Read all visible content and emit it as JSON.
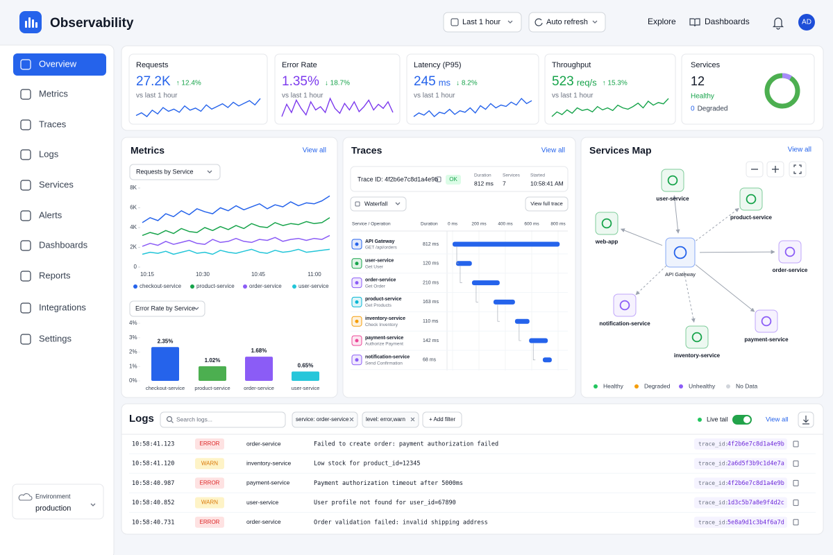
{
  "header": {
    "brand": "Observability",
    "time_range": "Last 1 hour",
    "refresh": "Auto refresh",
    "nav": [
      "Explore",
      "Dashboards"
    ],
    "avatar": "AD"
  },
  "sidebar": {
    "items": [
      "Overview",
      "Metrics",
      "Traces",
      "Logs",
      "Services",
      "Alerts",
      "Dashboards",
      "Reports",
      "Integrations",
      "Settings"
    ],
    "active": 0,
    "environment": {
      "label": "Environment",
      "value": "production"
    }
  },
  "kpis": [
    {
      "label": "Requests",
      "value": "27.2K",
      "change": "↑ 12.4%",
      "compare": "vs last 1 hour",
      "color": "#2563eb",
      "sparkline": [
        30,
        35,
        28,
        40,
        33,
        45,
        38,
        42,
        36,
        48,
        40,
        44,
        38,
        50,
        42,
        47,
        52,
        45,
        55,
        48,
        53,
        58,
        50,
        62
      ]
    },
    {
      "label": "Error Rate",
      "value": "1.35%",
      "change": "↓ 18.7%",
      "compare": "vs last 1 hour",
      "color": "#7c3aed",
      "sparkline": [
        40,
        55,
        45,
        60,
        50,
        42,
        58,
        48,
        52,
        45,
        62,
        50,
        44,
        56,
        48,
        58,
        46,
        52,
        60,
        48,
        55,
        50,
        58,
        45
      ]
    },
    {
      "label": "Latency (P95)",
      "value": "245",
      "unit": "ms",
      "change": "↓ 8.2%",
      "compare": "vs last 1 hour",
      "color": "#2563eb",
      "sparkline": [
        30,
        35,
        32,
        38,
        30,
        36,
        34,
        40,
        33,
        38,
        36,
        42,
        35,
        45,
        40,
        48,
        42,
        46,
        44,
        50,
        46,
        55,
        48,
        52
      ]
    },
    {
      "label": "Throughput",
      "value": "523",
      "unit": "req/s",
      "change": "↑ 15.3%",
      "compare": "vs last 1 hour",
      "color": "#16a34a",
      "sparkline": [
        35,
        42,
        38,
        45,
        40,
        48,
        44,
        46,
        42,
        50,
        45,
        48,
        44,
        52,
        48,
        46,
        50,
        55,
        48,
        58,
        52,
        56,
        54,
        62
      ]
    }
  ],
  "services_summary": {
    "label": "Services",
    "value": "12",
    "status": "Healthy",
    "degraded_count": "0",
    "degraded_label": "Degraded"
  },
  "metrics": {
    "title": "Metrics",
    "view_all": "View all",
    "requests_chart": {
      "type": "line",
      "selector": "Requests by Service",
      "x_labels": [
        "10:15",
        "10:30",
        "10:45",
        "11:00"
      ],
      "ylim": [
        0,
        8000
      ],
      "yticks": [
        0,
        {
          "value": 2000,
          "label": "2K"
        },
        {
          "value": 4000,
          "label": "4K"
        },
        {
          "value": 6000,
          "label": "6K"
        },
        {
          "value": 8000,
          "label": "8K"
        }
      ],
      "series": [
        {
          "name": "checkout-service",
          "color": "#2563eb",
          "values": [
            4500,
            5000,
            4700,
            5400,
            5100,
            5700,
            5300,
            5900,
            5600,
            5400,
            6000,
            5700,
            6200,
            5800,
            6100,
            6400,
            5900,
            6300,
            6100,
            6600,
            6200,
            6500,
            6400,
            6700,
            7200
          ]
        },
        {
          "name": "product-service",
          "color": "#16a34a",
          "values": [
            3200,
            3500,
            3300,
            3700,
            3400,
            3900,
            3600,
            3500,
            4000,
            3700,
            4100,
            3800,
            4200,
            3900,
            4400,
            4100,
            4000,
            4500,
            4200,
            4400,
            4300,
            4600,
            4400,
            4500,
            5000
          ]
        },
        {
          "name": "order-service",
          "color": "#8b5cf6",
          "values": [
            2100,
            2400,
            2200,
            2600,
            2300,
            2500,
            2700,
            2400,
            2300,
            2800,
            2500,
            2600,
            2900,
            2600,
            2500,
            2800,
            2700,
            3000,
            2600,
            2800,
            2900,
            2700,
            2900,
            2800,
            3200
          ]
        },
        {
          "name": "user-service",
          "color": "#22c5d8",
          "values": [
            1300,
            1500,
            1400,
            1600,
            1300,
            1500,
            1700,
            1400,
            1500,
            1300,
            1700,
            1500,
            1400,
            1600,
            1800,
            1500,
            1400,
            1700,
            1500,
            1600,
            1800,
            1500,
            1600,
            1700,
            1800
          ]
        }
      ]
    },
    "error_chart": {
      "type": "bar",
      "selector": "Error Rate by Service",
      "categories": [
        "checkout-service",
        "product-service",
        "order-service",
        "user-service"
      ],
      "values": [
        2.35,
        1.02,
        1.68,
        0.65
      ],
      "value_labels": [
        "2.35%",
        "1.02%",
        "1.68%",
        "0.65%"
      ],
      "colors": [
        "#2563eb",
        "#4caf50",
        "#8b5cf6",
        "#26c6da"
      ],
      "ylim": [
        0,
        4
      ],
      "yticks": [
        {
          "value": 0,
          "label": "0%"
        },
        {
          "value": 1,
          "label": "1%"
        },
        {
          "value": 2,
          "label": "2%"
        },
        {
          "value": 3,
          "label": "3%"
        },
        {
          "value": 4,
          "label": "4%"
        }
      ]
    }
  },
  "traces": {
    "title": "Traces",
    "view_all": "View all",
    "trace_id": "Trace ID: 4f2b6e7c8d1a4e9b",
    "status": "OK",
    "stats": [
      {
        "label": "Duration",
        "value": "812 ms"
      },
      {
        "label": "Services",
        "value": "7"
      },
      {
        "label": "Started",
        "value": "10:58:41 AM"
      }
    ],
    "view_mode": "Waterfall",
    "view_full": "View full trace",
    "columns": [
      "Service / Operation",
      "Duration"
    ],
    "xlim": [
      0,
      800
    ],
    "xticks": [
      {
        "value": 0,
        "label": "0 ms"
      },
      {
        "value": 200,
        "label": "200 ms"
      },
      {
        "value": 400,
        "label": "400 ms"
      },
      {
        "value": 600,
        "label": "600 ms"
      },
      {
        "value": 800,
        "label": "800 ms"
      }
    ],
    "spans": [
      {
        "service": "API Gateway",
        "operation": "GET /api/orders",
        "start": 0,
        "duration": 812,
        "duration_label": "812 ms",
        "color": "#2563eb"
      },
      {
        "service": "user-service",
        "operation": "Get User",
        "start": 26,
        "duration": 120,
        "duration_label": "120 ms",
        "color": "#16a34a"
      },
      {
        "service": "order-service",
        "operation": "Get Order",
        "start": 147,
        "duration": 210,
        "duration_label": "210 ms",
        "color": "#8b5cf6"
      },
      {
        "service": "product-service",
        "operation": "Get Products",
        "start": 310,
        "duration": 163,
        "duration_label": "163 ms",
        "color": "#06b6d4"
      },
      {
        "service": "inventory-service",
        "operation": "Check Inventory",
        "start": 473,
        "duration": 110,
        "duration_label": "110 ms",
        "color": "#f59e0b"
      },
      {
        "service": "payment-service",
        "operation": "Authorize Payment",
        "start": 580,
        "duration": 142,
        "duration_label": "142 ms",
        "color": "#ec4899"
      },
      {
        "service": "notification-service",
        "operation": "Send Confirmation",
        "start": 684,
        "duration": 68,
        "duration_label": "68 ms",
        "color": "#8b5cf6"
      }
    ]
  },
  "services_map": {
    "title": "Services Map",
    "view_all": "View all",
    "nodes": [
      {
        "label": "user-service",
        "color": "#16a34a"
      },
      {
        "label": "product-service",
        "color": "#16a34a"
      },
      {
        "label": "web-app",
        "color": "#16a34a"
      },
      {
        "label": "API Gateway",
        "color": "#2563eb"
      },
      {
        "label": "order-service",
        "color": "#8b5cf6"
      },
      {
        "label": "notification-service",
        "color": "#8b5cf6"
      },
      {
        "label": "inventory-service",
        "color": "#16a34a"
      },
      {
        "label": "payment-service",
        "color": "#8b5cf6"
      }
    ],
    "legend": [
      {
        "label": "Healthy",
        "color": "#22c55e"
      },
      {
        "label": "Degraded",
        "color": "#f59e0b"
      },
      {
        "label": "Unhealthy",
        "color": "#8b5cf6"
      },
      {
        "label": "No Data",
        "color": "#d1d5db"
      }
    ]
  },
  "logs": {
    "title": "Logs",
    "search": "Search logs...",
    "filters": [
      "service: order-service",
      "level: error,warn"
    ],
    "add_filter": "+ Add filter",
    "live_tail": "Live tail",
    "view_all": "View all",
    "rows": [
      {
        "time": "10:58:41.123",
        "level": "ERROR",
        "service": "order-service",
        "message": "Failed to create order: payment authorization failed",
        "trace_label": "trace_id:",
        "trace_id": "4f2b6e7c8d1a4e9b"
      },
      {
        "time": "10:58:41.120",
        "level": "WARN",
        "service": "inventory-service",
        "message": "Low stock for product_id=12345",
        "trace_label": "trace_id:",
        "trace_id": "2a6d5f3b9c1d4e7a"
      },
      {
        "time": "10:58:40.987",
        "level": "ERROR",
        "service": "payment-service",
        "message": "Payment authorization timeout after 5000ms",
        "trace_label": "trace_id:",
        "trace_id": "4f2b6e7c8d1a4e9b"
      },
      {
        "time": "10:58:40.852",
        "level": "WARN",
        "service": "user-service",
        "message": "User profile not found for user_id=67890",
        "trace_label": "trace_id:",
        "trace_id": "1d3c5b7a8e9f4d2c"
      },
      {
        "time": "10:58:40.731",
        "level": "ERROR",
        "service": "order-service",
        "message": "Order validation failed: invalid shipping address",
        "trace_label": "trace_id:",
        "trace_id": "5e8a9d1c3b4f6a7d"
      }
    ]
  }
}
